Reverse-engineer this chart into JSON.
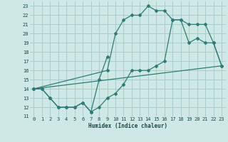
{
  "xlabel": "Humidex (Indice chaleur)",
  "bg_color": "#cde8e5",
  "grid_color": "#aacccc",
  "line_color": "#2e7d74",
  "xlim": [
    -0.5,
    23.5
  ],
  "ylim": [
    11,
    23.5
  ],
  "yticks": [
    11,
    12,
    13,
    14,
    15,
    16,
    17,
    18,
    19,
    20,
    21,
    22,
    23
  ],
  "xticks": [
    0,
    1,
    2,
    3,
    4,
    5,
    6,
    7,
    8,
    9,
    10,
    11,
    12,
    13,
    14,
    15,
    16,
    17,
    18,
    19,
    20,
    21,
    22,
    23
  ],
  "line1_x": [
    0,
    1,
    2,
    3,
    4,
    5,
    6,
    7,
    8,
    9,
    10,
    11,
    12,
    13,
    14,
    15,
    16,
    17,
    18,
    19,
    20,
    21,
    22,
    23
  ],
  "line1_y": [
    14,
    14,
    13,
    12,
    12,
    12,
    12.5,
    11.5,
    12,
    13,
    13.5,
    14.5,
    16,
    16,
    16,
    16.5,
    17,
    21.5,
    21.5,
    19,
    19.5,
    19,
    19,
    16.5
  ],
  "line2_x": [
    0,
    9,
    10,
    11,
    12,
    13,
    14,
    15,
    16,
    17,
    18,
    19,
    20,
    21,
    22,
    23
  ],
  "line2_y": [
    14,
    16,
    20,
    21.5,
    22,
    22,
    23,
    22.5,
    22.5,
    21.5,
    21.5,
    21,
    21,
    21,
    19,
    16.5
  ],
  "line3_x": [
    0,
    23
  ],
  "line3_y": [
    14,
    16.5
  ],
  "line_volatile_x": [
    0,
    1,
    2,
    3,
    4,
    5,
    6,
    7,
    8,
    9
  ],
  "line_volatile_y": [
    14,
    14,
    13,
    12,
    12,
    12,
    12.5,
    11.5,
    15,
    17.5
  ]
}
